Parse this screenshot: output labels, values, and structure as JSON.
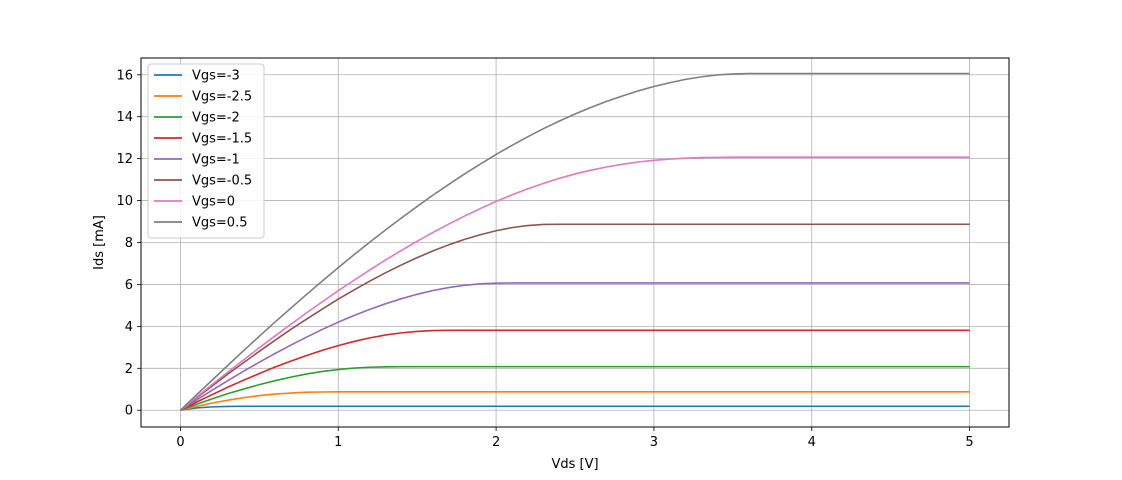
{
  "chart_data": {
    "type": "line",
    "title": "",
    "xlabel": "Vds [V]",
    "ylabel": "Ids [mA]",
    "xlim": [
      -0.25,
      5.25
    ],
    "ylim": [
      -0.8,
      16.8
    ],
    "xticks": [
      0,
      1,
      2,
      3,
      4,
      5
    ],
    "xtick_labels": [
      "0",
      "1",
      "2",
      "3",
      "4",
      "5"
    ],
    "yticks": [
      0,
      2,
      4,
      6,
      8,
      10,
      12,
      14,
      16
    ],
    "ytick_labels": [
      "0",
      "2",
      "4",
      "6",
      "8",
      "10",
      "12",
      "14",
      "16"
    ],
    "grid": true,
    "legend_position": "top-left",
    "x": [
      0,
      0.1,
      0.2,
      0.3,
      0.4,
      0.5,
      0.6,
      0.7,
      0.8,
      0.9,
      1.0,
      1.1,
      1.2,
      1.3,
      1.4,
      1.5,
      1.6,
      1.7,
      1.8,
      1.9,
      2.0,
      2.1,
      2.2,
      2.3,
      2.4,
      2.5,
      2.6,
      2.7,
      2.8,
      2.9,
      3.0,
      3.1,
      3.2,
      3.3,
      3.4,
      3.5,
      3.6,
      3.7,
      3.8,
      3.9,
      4.0,
      4.1,
      4.2,
      4.3,
      4.4,
      4.5,
      4.6,
      4.7,
      4.8,
      4.9,
      5.0
    ],
    "series": [
      {
        "name": "Vgs=-3",
        "color": "#1f77b4",
        "values": [
          0,
          0.11,
          0.16,
          0.18,
          0.19,
          0.19,
          0.19,
          0.19,
          0.19,
          0.19,
          0.19,
          0.19,
          0.19,
          0.19,
          0.19,
          0.19,
          0.19,
          0.19,
          0.19,
          0.19,
          0.19,
          0.19,
          0.19,
          0.19,
          0.19,
          0.19,
          0.19,
          0.19,
          0.19,
          0.19,
          0.19,
          0.19,
          0.19,
          0.19,
          0.19,
          0.19,
          0.19,
          0.19,
          0.19,
          0.19,
          0.19,
          0.19,
          0.19,
          0.19,
          0.19,
          0.19,
          0.19,
          0.19,
          0.19,
          0.19,
          0.19
        ]
      },
      {
        "name": "Vgs=-2.5",
        "color": "#ff7f0e",
        "values": [
          0,
          0.18,
          0.34,
          0.48,
          0.6,
          0.7,
          0.77,
          0.82,
          0.86,
          0.87,
          0.88,
          0.88,
          0.88,
          0.88,
          0.88,
          0.88,
          0.88,
          0.88,
          0.88,
          0.88,
          0.88,
          0.88,
          0.88,
          0.88,
          0.88,
          0.88,
          0.88,
          0.88,
          0.88,
          0.88,
          0.88,
          0.88,
          0.88,
          0.88,
          0.88,
          0.88,
          0.88,
          0.88,
          0.88,
          0.88,
          0.88,
          0.88,
          0.88,
          0.88,
          0.88,
          0.88,
          0.88,
          0.88,
          0.88,
          0.88,
          0.88
        ]
      },
      {
        "name": "Vgs=-2",
        "color": "#2ca02c",
        "values": [
          0,
          0.28,
          0.54,
          0.79,
          1.01,
          1.22,
          1.41,
          1.58,
          1.73,
          1.85,
          1.94,
          2.01,
          2.05,
          2.07,
          2.08,
          2.08,
          2.08,
          2.08,
          2.08,
          2.08,
          2.08,
          2.08,
          2.08,
          2.08,
          2.08,
          2.08,
          2.08,
          2.08,
          2.08,
          2.08,
          2.08,
          2.08,
          2.08,
          2.08,
          2.08,
          2.08,
          2.08,
          2.08,
          2.08,
          2.08,
          2.08,
          2.08,
          2.08,
          2.08,
          2.08,
          2.08,
          2.08,
          2.08,
          2.08,
          2.08,
          2.08
        ]
      },
      {
        "name": "Vgs=-1.5",
        "color": "#d62728",
        "values": [
          0,
          0.38,
          0.74,
          1.1,
          1.43,
          1.75,
          2.06,
          2.34,
          2.61,
          2.86,
          3.08,
          3.28,
          3.45,
          3.59,
          3.69,
          3.76,
          3.8,
          3.81,
          3.81,
          3.81,
          3.81,
          3.81,
          3.81,
          3.81,
          3.81,
          3.81,
          3.81,
          3.81,
          3.81,
          3.81,
          3.81,
          3.81,
          3.81,
          3.81,
          3.81,
          3.81,
          3.81,
          3.81,
          3.81,
          3.81,
          3.81,
          3.81,
          3.81,
          3.81,
          3.81,
          3.81,
          3.81,
          3.81,
          3.81,
          3.81,
          3.81
        ]
      },
      {
        "name": "Vgs=-1",
        "color": "#9467bd",
        "values": [
          0,
          0.48,
          0.95,
          1.41,
          1.86,
          2.29,
          2.71,
          3.11,
          3.49,
          3.86,
          4.2,
          4.52,
          4.81,
          5.08,
          5.32,
          5.53,
          5.71,
          5.85,
          5.96,
          6.03,
          6.06,
          6.07,
          6.07,
          6.07,
          6.07,
          6.07,
          6.07,
          6.07,
          6.07,
          6.07,
          6.07,
          6.07,
          6.07,
          6.07,
          6.07,
          6.07,
          6.07,
          6.07,
          6.07,
          6.07,
          6.07,
          6.07,
          6.07,
          6.07,
          6.07,
          6.07,
          6.07,
          6.07,
          6.07,
          6.07,
          6.07
        ]
      },
      {
        "name": "Vgs=-0.5",
        "color": "#8c564b",
        "values": [
          0,
          0.58,
          1.15,
          1.72,
          2.27,
          2.81,
          3.34,
          3.86,
          4.35,
          4.83,
          5.3,
          5.74,
          6.16,
          6.56,
          6.93,
          7.28,
          7.6,
          7.89,
          8.15,
          8.37,
          8.56,
          8.71,
          8.81,
          8.86,
          8.87,
          8.87,
          8.87,
          8.87,
          8.87,
          8.87,
          8.87,
          8.87,
          8.87,
          8.87,
          8.87,
          8.87,
          8.87,
          8.87,
          8.87,
          8.87,
          8.87,
          8.87,
          8.87,
          8.87,
          8.87,
          8.87,
          8.87,
          8.87,
          8.87,
          8.87,
          8.87
        ]
      },
      {
        "name": "Vgs=0",
        "color": "#e377c2",
        "values": [
          0,
          0.61,
          1.22,
          1.82,
          2.4,
          2.98,
          3.55,
          4.1,
          4.65,
          5.18,
          5.7,
          6.2,
          6.69,
          7.17,
          7.62,
          8.06,
          8.48,
          8.88,
          9.26,
          9.62,
          9.96,
          10.27,
          10.56,
          10.82,
          11.06,
          11.27,
          11.45,
          11.6,
          11.73,
          11.84,
          11.92,
          11.98,
          12.02,
          12.05,
          12.06,
          12.07,
          12.07,
          12.07,
          12.07,
          12.07,
          12.07,
          12.07,
          12.07,
          12.07,
          12.07,
          12.07,
          12.07,
          12.07,
          12.07,
          12.07,
          12.07
        ]
      },
      {
        "name": "Vgs=0.5",
        "color": "#7f7f7f",
        "values": [
          0,
          0.72,
          1.43,
          2.14,
          2.84,
          3.53,
          4.21,
          4.87,
          5.53,
          6.17,
          6.8,
          7.42,
          8.02,
          8.6,
          9.17,
          9.72,
          10.26,
          10.77,
          11.27,
          11.74,
          12.2,
          12.63,
          13.04,
          13.43,
          13.79,
          14.13,
          14.44,
          14.73,
          14.99,
          15.23,
          15.44,
          15.62,
          15.78,
          15.9,
          15.99,
          16.04,
          16.06,
          16.06,
          16.06,
          16.06,
          16.06,
          16.06,
          16.06,
          16.06,
          16.06,
          16.06,
          16.06,
          16.06,
          16.06,
          16.06,
          16.06
        ]
      }
    ]
  }
}
